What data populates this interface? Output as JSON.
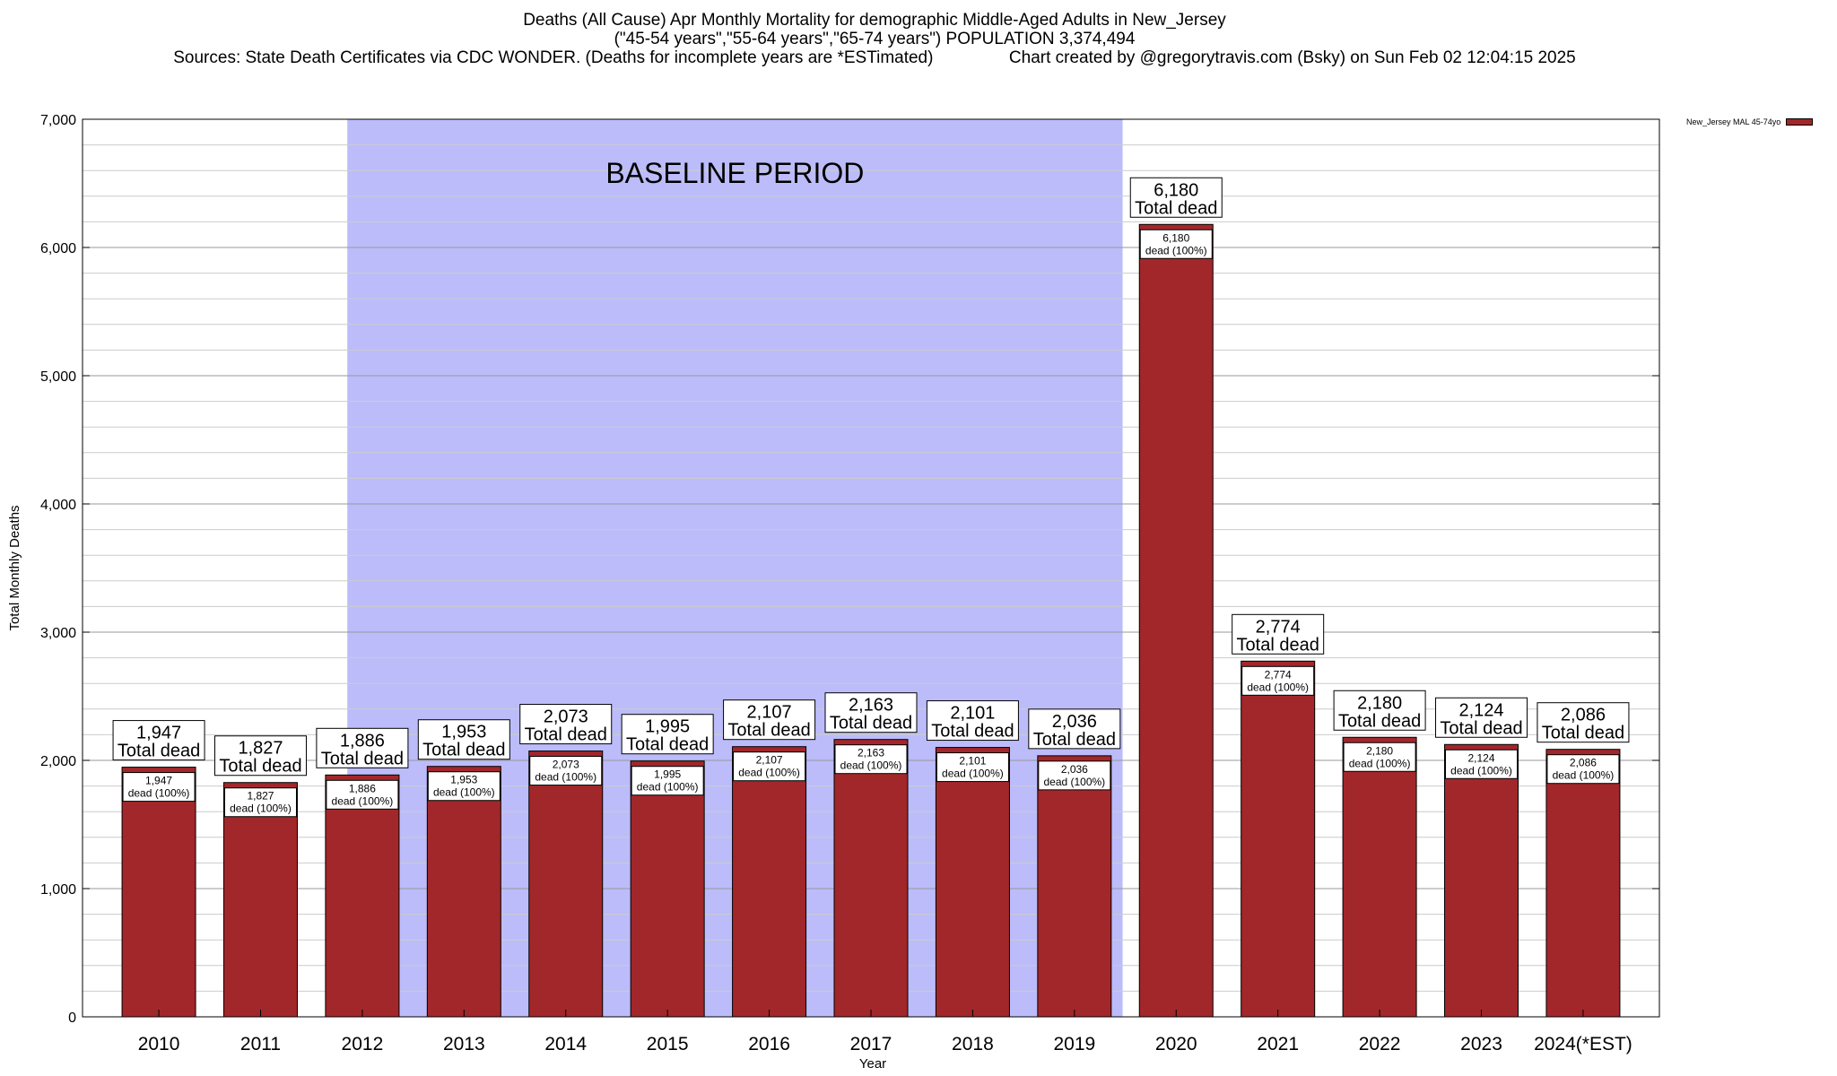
{
  "title": {
    "line1": "Deaths (All Cause) Apr Monthly Mortality for demographic Middle-Aged Adults in New_Jersey",
    "line2": "(\"45-54 years\",\"55-64 years\",\"65-74 years\") POPULATION 3,374,494",
    "line3": "Sources: State Death Certificates via CDC WONDER. (Deaths for incomplete years are *ESTimated)                Chart created by @gregorytravis.com (Bsky) on Sun Feb 02 12:04:15 2025"
  },
  "legend": {
    "label": "New_Jersey MAL 45-74yo"
  },
  "colors": {
    "bar": "#a2272a",
    "baseline_shade": "#bcbcfb",
    "grid_major": "#999999",
    "grid_minor": "#cccccc"
  },
  "chart_data": {
    "type": "bar",
    "title": "Deaths (All Cause) Apr Monthly Mortality for demographic Middle-Aged Adults in New_Jersey",
    "xlabel": "Year",
    "ylabel": "Total Monthly Deaths",
    "ylim": [
      0,
      7000
    ],
    "yticks": [
      "0",
      "1,000",
      "2,000",
      "3,000",
      "4,000",
      "5,000",
      "6,000",
      "7,000"
    ],
    "grid": true,
    "legend_position": "top-right",
    "categories": [
      "2010",
      "2011",
      "2012",
      "2013",
      "2014",
      "2015",
      "2016",
      "2017",
      "2018",
      "2019",
      "2020",
      "2021",
      "2022",
      "2023",
      "2024(*EST)"
    ],
    "series": [
      {
        "name": "New_Jersey MAL 45-74yo",
        "values": [
          1947,
          1827,
          1886,
          1953,
          2073,
          1995,
          2107,
          2163,
          2101,
          2036,
          6180,
          2774,
          2180,
          2124,
          2086
        ]
      }
    ],
    "value_labels": [
      "1,947",
      "1,827",
      "1,886",
      "1,953",
      "2,073",
      "1,995",
      "2,107",
      "2,163",
      "2,101",
      "2,036",
      "6,180",
      "2,774",
      "2,180",
      "2,124",
      "2,086"
    ],
    "total_label_suffix": "Total dead",
    "inner_label_suffix": "dead (100%)",
    "baseline": {
      "label": "BASELINE PERIOD",
      "start": "2012",
      "end": "2019"
    }
  }
}
